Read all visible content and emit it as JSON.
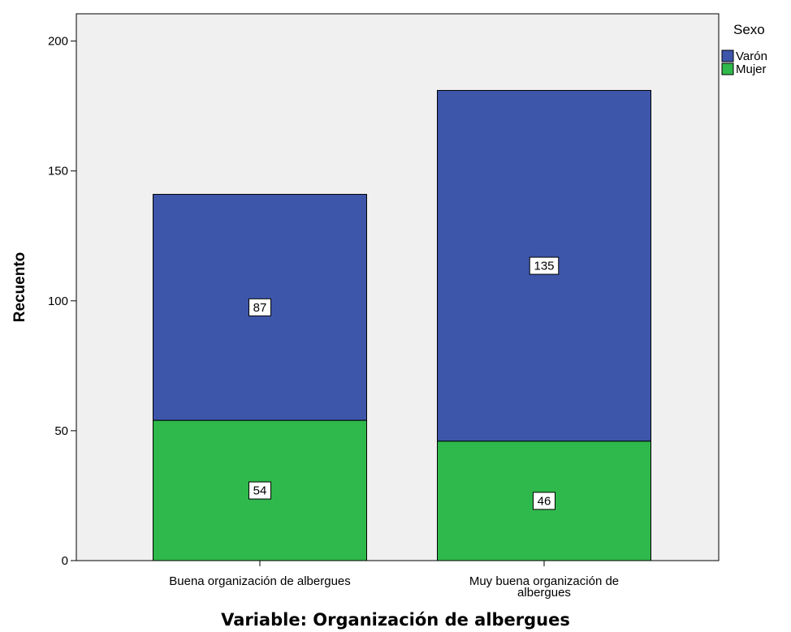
{
  "chart_data": {
    "type": "bar",
    "stacked": true,
    "categories": [
      [
        "Buena organización de albergues"
      ],
      [
        "Muy buena organización de",
        "albergues"
      ]
    ],
    "series": [
      {
        "name": "Mujer",
        "values": [
          54,
          46
        ],
        "color": "#2fb84b"
      },
      {
        "name": "Varón",
        "values": [
          87,
          135
        ],
        "color": "#3d56aa"
      }
    ],
    "xlabel": "Variable: Organización de albergues",
    "ylabel": "Recuento",
    "ylim": [
      0,
      200
    ],
    "yticks": [
      0,
      50,
      100,
      150,
      200
    ],
    "legend": {
      "title": "Sexo",
      "placement": "top-right",
      "order": [
        "Varón",
        "Mujer"
      ]
    },
    "plot_background": "#f0f0f0",
    "grid": false
  }
}
